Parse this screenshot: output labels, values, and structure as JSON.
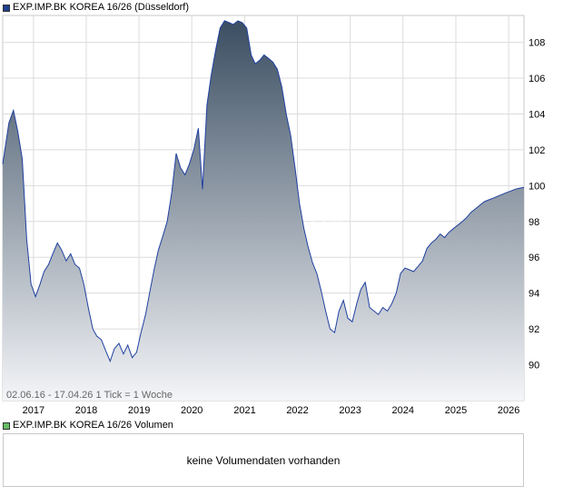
{
  "price_legend": {
    "label": "EXP.IMP.BK KOREA 16/26 (Düsseldorf)",
    "color": "#1f3f8f"
  },
  "volume_legend": {
    "label": "EXP.IMP.BK KOREA 16/26 Volumen",
    "color": "#66bb66"
  },
  "range_info": "02.06.16 - 17.04.26   1 Tick = 1 Woche",
  "watermark": "ECK",
  "volume_message": "keine Volumendaten vorhanden",
  "colors": {
    "line": "#2040a0",
    "fill_top": "#3b4e62",
    "fill_bottom": "#f4f5f8",
    "grid": "#dcdcdc"
  },
  "chart_data": {
    "type": "area",
    "title": "",
    "xlabel": "",
    "ylabel": "",
    "grid": true,
    "x_ticks": [
      "2017",
      "2018",
      "2019",
      "2020",
      "2021",
      "2022",
      "2023",
      "2024",
      "2025",
      "2026"
    ],
    "y_ticks": [
      90,
      92,
      94,
      96,
      98,
      100,
      102,
      104,
      106,
      108
    ],
    "xlim": [
      "2016-06-02",
      "2026-04-17"
    ],
    "ylim": [
      88,
      109.5
    ],
    "x": [
      "2016-06",
      "2016-07",
      "2016-08",
      "2016-09",
      "2016-10",
      "2016-11",
      "2016-12",
      "2017-01",
      "2017-02",
      "2017-03",
      "2017-04",
      "2017-05",
      "2017-06",
      "2017-07",
      "2017-08",
      "2017-09",
      "2017-10",
      "2017-11",
      "2017-12",
      "2018-01",
      "2018-02",
      "2018-03",
      "2018-04",
      "2018-05",
      "2018-06",
      "2018-07",
      "2018-08",
      "2018-09",
      "2018-10",
      "2018-11",
      "2018-12",
      "2019-01",
      "2019-02",
      "2019-03",
      "2019-04",
      "2019-05",
      "2019-06",
      "2019-07",
      "2019-08",
      "2019-09",
      "2019-10",
      "2019-11",
      "2019-12",
      "2020-01",
      "2020-02",
      "2020-03",
      "2020-04",
      "2020-05",
      "2020-06",
      "2020-07",
      "2020-08",
      "2020-09",
      "2020-10",
      "2020-11",
      "2020-12",
      "2021-01",
      "2021-02",
      "2021-03",
      "2021-04",
      "2021-05",
      "2021-06",
      "2021-07",
      "2021-08",
      "2021-09",
      "2021-10",
      "2021-11",
      "2021-12",
      "2022-01",
      "2022-02",
      "2022-03",
      "2022-04",
      "2022-05",
      "2022-06",
      "2022-07",
      "2022-08",
      "2022-09",
      "2022-10",
      "2022-11",
      "2022-12",
      "2023-01",
      "2023-02",
      "2023-03",
      "2023-04",
      "2023-05",
      "2023-06",
      "2023-07",
      "2023-08",
      "2023-09",
      "2023-10",
      "2023-11",
      "2023-12",
      "2024-01",
      "2024-02",
      "2024-03",
      "2024-04",
      "2024-05",
      "2024-06",
      "2024-07",
      "2024-08",
      "2024-09",
      "2024-10",
      "2024-11",
      "2024-12",
      "2025-01",
      "2025-02",
      "2025-03",
      "2025-04",
      "2025-05",
      "2025-06",
      "2025-07",
      "2025-08",
      "2025-09",
      "2025-10",
      "2025-11",
      "2025-12",
      "2026-01",
      "2026-02",
      "2026-03",
      "2026-04"
    ],
    "series": [
      {
        "values": [
          101.2,
          103.5,
          104.2,
          103.0,
          101.5,
          97.0,
          94.5,
          93.8,
          94.5,
          95.2,
          95.6,
          96.2,
          96.8,
          96.4,
          95.8,
          96.2,
          95.6,
          95.4,
          94.5,
          93.2,
          92.0,
          91.6,
          91.4,
          90.8,
          90.2,
          90.9,
          91.2,
          90.6,
          91.1,
          90.4,
          90.7,
          91.8,
          92.8,
          94.0,
          95.3,
          96.4,
          97.2,
          98.0,
          99.6,
          101.8,
          101.0,
          100.6,
          101.2,
          102.0,
          103.2,
          99.8,
          104.5,
          106.2,
          107.6,
          108.8,
          109.2,
          109.1,
          109.0,
          109.2,
          109.1,
          108.8,
          107.3,
          106.8,
          107.0,
          107.3,
          107.1,
          106.9,
          106.5,
          105.5,
          104.0,
          102.8,
          101.0,
          99.0,
          97.6,
          96.6,
          95.7,
          95.1,
          94.1,
          93.0,
          92.0,
          91.8,
          93.0,
          93.6,
          92.6,
          92.4,
          93.4,
          94.2,
          94.6,
          93.2,
          93.0,
          92.8,
          93.2,
          93.0,
          93.4,
          94.0,
          95.1,
          95.4,
          95.3,
          95.2,
          95.5,
          95.8,
          96.5,
          96.8,
          97.0,
          97.3,
          97.1,
          97.4,
          97.6,
          97.8,
          98.0,
          98.2,
          98.5,
          98.7,
          98.9,
          99.1,
          99.2,
          99.3,
          99.4,
          99.5,
          99.6,
          99.7,
          99.8,
          99.85,
          99.9
        ]
      }
    ]
  }
}
